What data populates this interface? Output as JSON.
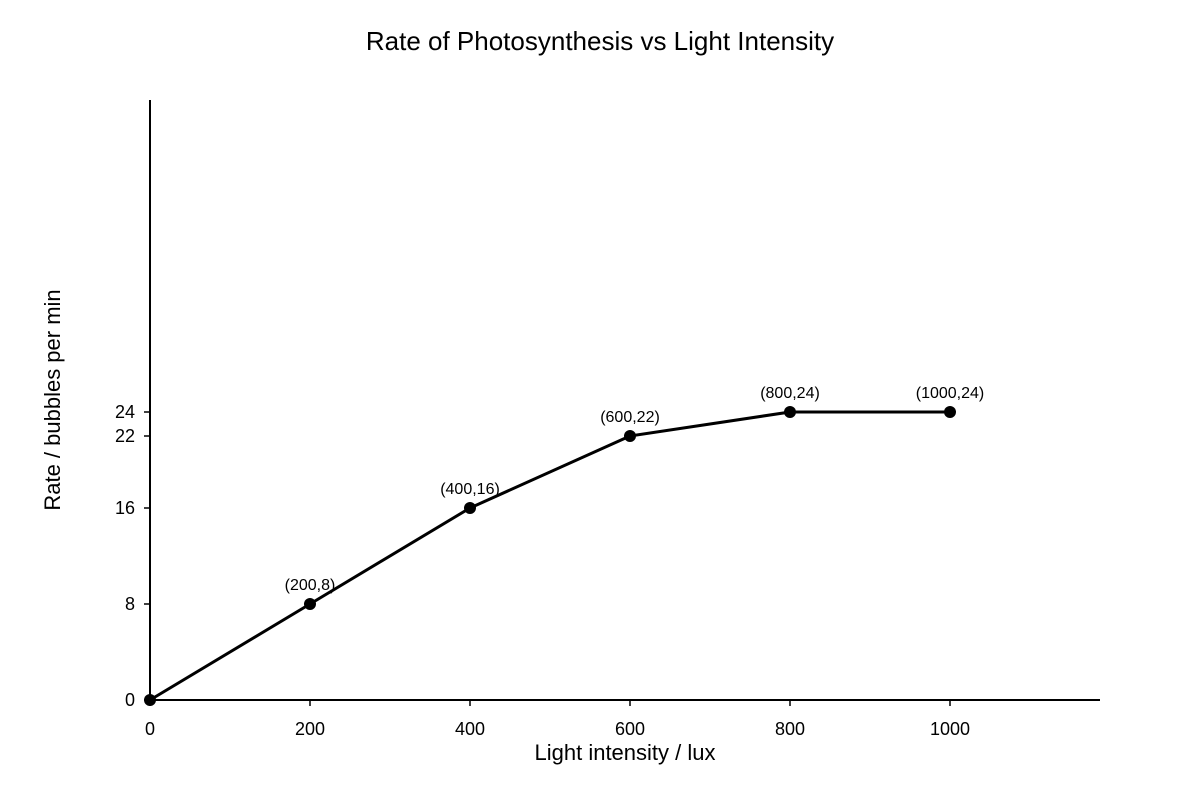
{
  "chart_data": {
    "type": "line",
    "title": "Rate of Photosynthesis vs Light Intensity",
    "xlabel": "Light intensity / lux",
    "ylabel": "Rate / bubbles per min",
    "x": [
      0,
      200,
      400,
      600,
      800,
      1000
    ],
    "series": [
      {
        "values": [
          0,
          8,
          16,
          22,
          24,
          24
        ]
      }
    ],
    "point_labels": [
      "",
      "(200,8)",
      "(400,16)",
      "(600,22)",
      "(800,24)",
      "(1000,24)"
    ],
    "x_ticks": [
      0,
      200,
      400,
      600,
      800,
      1000
    ],
    "x_tick_labels": [
      "0",
      "200",
      "400",
      "600",
      "800",
      "1000"
    ],
    "y_ticks": [
      0,
      8,
      16,
      22,
      24
    ],
    "y_tick_labels": [
      "0",
      "8",
      "16",
      "22",
      "24"
    ],
    "xlim": [
      0,
      1187.5
    ],
    "ylim": [
      0,
      50
    ],
    "grid": false,
    "legend": "none",
    "line_color": "#000000",
    "marker_color": "#000000"
  }
}
